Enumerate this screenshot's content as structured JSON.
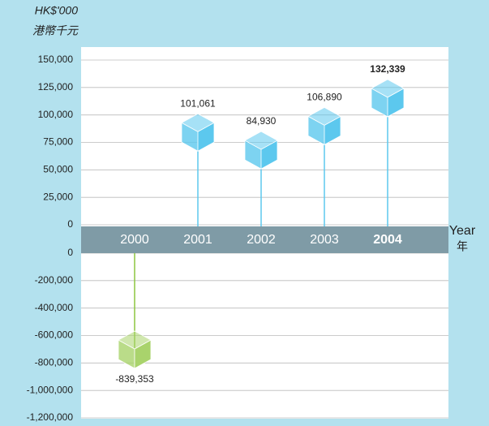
{
  "chart_data": {
    "type": "lollipop-cube",
    "y_label": "HK$'000",
    "y_label_zh": "港幣千元",
    "x_label": "Year",
    "x_label_zh": "年",
    "categories": [
      "2000",
      "2001",
      "2002",
      "2003",
      "2004"
    ],
    "highlight": "2004",
    "values": [
      -839353,
      101061,
      84930,
      106890,
      132339
    ],
    "value_labels": [
      "-839,353",
      "101,061",
      "84,930",
      "106,890",
      "132,339"
    ],
    "positive_color": "#5cc8ee",
    "negative_color": "#a9d36c",
    "ylim": [
      0,
      150000
    ],
    "yticks": [
      0,
      {
        "value": 25000,
        "label": "25,000"
      },
      {
        "value": 50000,
        "label": "50,000"
      },
      {
        "value": 75000,
        "label": "75,000"
      },
      {
        "value": 100000,
        "label": "100,000"
      },
      {
        "value": 125000,
        "label": "125,000"
      },
      {
        "value": 150000,
        "label": "150,000"
      }
    ],
    "lower_ylim": [
      -1200000,
      0
    ],
    "lower_yticks": [
      0,
      {
        "value": -200000,
        "label": "-200,000"
      },
      {
        "value": -400000,
        "label": "-400,000"
      },
      {
        "value": -600000,
        "label": "-600,000"
      },
      {
        "value": -800000,
        "label": "-800,000"
      },
      {
        "value": -1000000,
        "label": "-1,000,000"
      },
      {
        "value": -1200000,
        "label": "-1,200,000"
      }
    ],
    "grid": true
  }
}
